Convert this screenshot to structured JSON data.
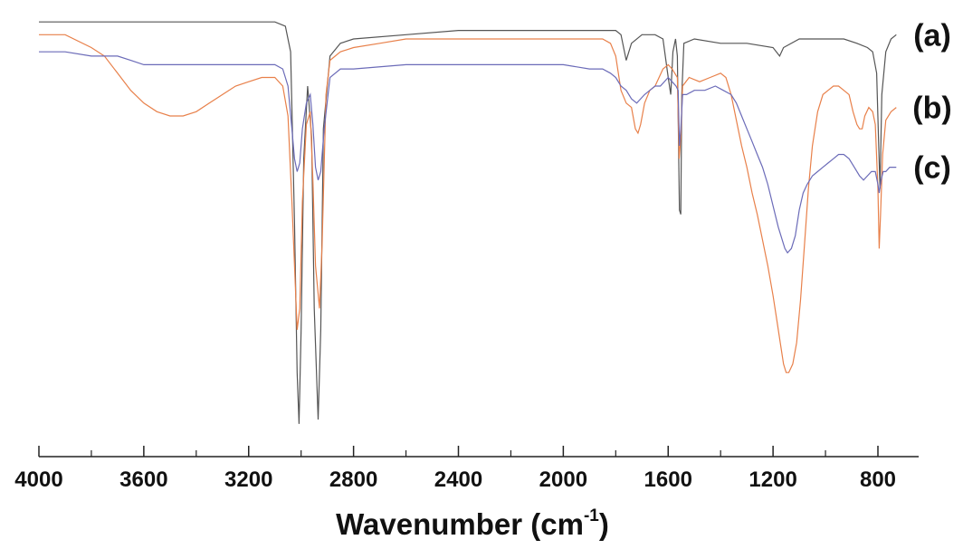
{
  "chart_data": {
    "type": "line",
    "title": "",
    "xlabel": "Wavenumber (cm",
    "xlabel_superscript": "-1",
    "xlabel_close": ")",
    "ylabel": "",
    "xlim": [
      4000,
      650
    ],
    "x_reversed": true,
    "grid": false,
    "major_ticks": [
      4000,
      3600,
      3200,
      2800,
      2400,
      2000,
      1600,
      1200,
      800
    ],
    "minor_ticks": [
      3800,
      3400,
      3000,
      2600,
      2200,
      1800,
      1400,
      1000
    ],
    "tick_labels": [
      "4000",
      "3600",
      "3200",
      "2800",
      "2400",
      "2000",
      "1600",
      "1200",
      "800"
    ],
    "transmittance_scale": "relative, y axis unlabeled, 0 = bottom of plot, 100 = top",
    "series": [
      {
        "name": "(a)",
        "color": "#555555",
        "points": [
          [
            4000,
            97
          ],
          [
            3600,
            97
          ],
          [
            3400,
            97
          ],
          [
            3200,
            97
          ],
          [
            3100,
            97
          ],
          [
            3060,
            96
          ],
          [
            3040,
            90
          ],
          [
            3025,
            50
          ],
          [
            3015,
            15
          ],
          [
            3008,
            3
          ],
          [
            3000,
            25
          ],
          [
            2990,
            65
          ],
          [
            2975,
            82
          ],
          [
            2960,
            70
          ],
          [
            2950,
            30
          ],
          [
            2935,
            4
          ],
          [
            2925,
            25
          ],
          [
            2915,
            72
          ],
          [
            2890,
            89
          ],
          [
            2850,
            92
          ],
          [
            2800,
            93
          ],
          [
            2600,
            94
          ],
          [
            2400,
            95
          ],
          [
            2200,
            95
          ],
          [
            2000,
            95
          ],
          [
            1900,
            95
          ],
          [
            1850,
            95
          ],
          [
            1800,
            95
          ],
          [
            1780,
            94
          ],
          [
            1760,
            88
          ],
          [
            1740,
            92
          ],
          [
            1700,
            94
          ],
          [
            1650,
            94
          ],
          [
            1620,
            93
          ],
          [
            1600,
            84
          ],
          [
            1590,
            80
          ],
          [
            1582,
            90
          ],
          [
            1572,
            93
          ],
          [
            1565,
            89
          ],
          [
            1557,
            53
          ],
          [
            1552,
            52
          ],
          [
            1548,
            80
          ],
          [
            1540,
            92
          ],
          [
            1500,
            93
          ],
          [
            1400,
            92
          ],
          [
            1300,
            92
          ],
          [
            1200,
            91
          ],
          [
            1175,
            89
          ],
          [
            1160,
            91
          ],
          [
            1100,
            93
          ],
          [
            1000,
            93
          ],
          [
            930,
            93
          ],
          [
            880,
            92
          ],
          [
            840,
            91
          ],
          [
            820,
            90
          ],
          [
            805,
            85
          ],
          [
            798,
            70
          ],
          [
            792,
            58
          ],
          [
            785,
            80
          ],
          [
            770,
            90
          ],
          [
            750,
            93
          ],
          [
            730,
            94
          ]
        ]
      },
      {
        "name": "(b)",
        "color": "#e8804a",
        "points": [
          [
            4000,
            94
          ],
          [
            3900,
            94
          ],
          [
            3800,
            91
          ],
          [
            3750,
            89
          ],
          [
            3700,
            85
          ],
          [
            3650,
            81
          ],
          [
            3600,
            78
          ],
          [
            3550,
            76
          ],
          [
            3500,
            75
          ],
          [
            3450,
            75
          ],
          [
            3400,
            76
          ],
          [
            3350,
            78
          ],
          [
            3300,
            80
          ],
          [
            3250,
            82
          ],
          [
            3200,
            83
          ],
          [
            3150,
            84
          ],
          [
            3100,
            84
          ],
          [
            3070,
            82
          ],
          [
            3050,
            75
          ],
          [
            3035,
            55
          ],
          [
            3025,
            40
          ],
          [
            3015,
            25
          ],
          [
            3005,
            30
          ],
          [
            2995,
            55
          ],
          [
            2980,
            73
          ],
          [
            2965,
            76
          ],
          [
            2955,
            60
          ],
          [
            2945,
            40
          ],
          [
            2930,
            30
          ],
          [
            2920,
            45
          ],
          [
            2905,
            80
          ],
          [
            2890,
            88
          ],
          [
            2850,
            90
          ],
          [
            2800,
            91
          ],
          [
            2700,
            92
          ],
          [
            2600,
            93
          ],
          [
            2400,
            93
          ],
          [
            2200,
            93
          ],
          [
            2000,
            93
          ],
          [
            1900,
            93
          ],
          [
            1850,
            93
          ],
          [
            1820,
            92
          ],
          [
            1800,
            89
          ],
          [
            1780,
            81
          ],
          [
            1760,
            78
          ],
          [
            1740,
            77
          ],
          [
            1725,
            72
          ],
          [
            1715,
            71
          ],
          [
            1705,
            73
          ],
          [
            1690,
            78
          ],
          [
            1670,
            81
          ],
          [
            1650,
            82
          ],
          [
            1620,
            86
          ],
          [
            1600,
            87
          ],
          [
            1585,
            86
          ],
          [
            1575,
            85
          ],
          [
            1565,
            84
          ],
          [
            1558,
            65
          ],
          [
            1552,
            70
          ],
          [
            1545,
            82
          ],
          [
            1520,
            84
          ],
          [
            1480,
            83
          ],
          [
            1440,
            84
          ],
          [
            1400,
            85
          ],
          [
            1380,
            84
          ],
          [
            1360,
            80
          ],
          [
            1340,
            74
          ],
          [
            1320,
            68
          ],
          [
            1300,
            63
          ],
          [
            1280,
            57
          ],
          [
            1260,
            52
          ],
          [
            1240,
            46
          ],
          [
            1220,
            40
          ],
          [
            1200,
            33
          ],
          [
            1185,
            27
          ],
          [
            1170,
            21
          ],
          [
            1160,
            17
          ],
          [
            1150,
            15
          ],
          [
            1140,
            15
          ],
          [
            1125,
            17
          ],
          [
            1110,
            22
          ],
          [
            1095,
            32
          ],
          [
            1080,
            45
          ],
          [
            1065,
            58
          ],
          [
            1050,
            68
          ],
          [
            1030,
            76
          ],
          [
            1010,
            80
          ],
          [
            990,
            81
          ],
          [
            970,
            82
          ],
          [
            950,
            82
          ],
          [
            930,
            81
          ],
          [
            910,
            80
          ],
          [
            895,
            76
          ],
          [
            880,
            73
          ],
          [
            870,
            72
          ],
          [
            860,
            72
          ],
          [
            850,
            75
          ],
          [
            835,
            77
          ],
          [
            820,
            76
          ],
          [
            810,
            73
          ],
          [
            800,
            58
          ],
          [
            795,
            44
          ],
          [
            790,
            52
          ],
          [
            782,
            66
          ],
          [
            770,
            74
          ],
          [
            750,
            76
          ],
          [
            730,
            77
          ]
        ]
      },
      {
        "name": "(c)",
        "color": "#6b6bb8",
        "points": [
          [
            4000,
            90
          ],
          [
            3900,
            90
          ],
          [
            3800,
            89
          ],
          [
            3700,
            89
          ],
          [
            3650,
            88
          ],
          [
            3600,
            87
          ],
          [
            3500,
            87
          ],
          [
            3400,
            87
          ],
          [
            3300,
            87
          ],
          [
            3200,
            87
          ],
          [
            3100,
            87
          ],
          [
            3070,
            86
          ],
          [
            3050,
            82
          ],
          [
            3035,
            72
          ],
          [
            3025,
            65
          ],
          [
            3015,
            62
          ],
          [
            3005,
            64
          ],
          [
            2995,
            72
          ],
          [
            2980,
            78
          ],
          [
            2965,
            80
          ],
          [
            2955,
            73
          ],
          [
            2945,
            63
          ],
          [
            2935,
            60
          ],
          [
            2925,
            62
          ],
          [
            2912,
            72
          ],
          [
            2890,
            84
          ],
          [
            2850,
            86
          ],
          [
            2800,
            86
          ],
          [
            2600,
            87
          ],
          [
            2400,
            87
          ],
          [
            2200,
            87
          ],
          [
            2000,
            87
          ],
          [
            1900,
            86
          ],
          [
            1850,
            86
          ],
          [
            1820,
            85
          ],
          [
            1800,
            84
          ],
          [
            1780,
            82
          ],
          [
            1760,
            81
          ],
          [
            1740,
            79
          ],
          [
            1720,
            78
          ],
          [
            1705,
            79
          ],
          [
            1690,
            80
          ],
          [
            1670,
            81
          ],
          [
            1650,
            82
          ],
          [
            1630,
            82
          ],
          [
            1600,
            84
          ],
          [
            1585,
            83
          ],
          [
            1570,
            82
          ],
          [
            1562,
            81
          ],
          [
            1557,
            68
          ],
          [
            1552,
            72
          ],
          [
            1545,
            80
          ],
          [
            1530,
            80
          ],
          [
            1500,
            81
          ],
          [
            1460,
            81
          ],
          [
            1420,
            82
          ],
          [
            1390,
            81
          ],
          [
            1360,
            80
          ],
          [
            1340,
            78
          ],
          [
            1320,
            75
          ],
          [
            1300,
            72
          ],
          [
            1280,
            69
          ],
          [
            1260,
            66
          ],
          [
            1240,
            63
          ],
          [
            1220,
            59
          ],
          [
            1200,
            54
          ],
          [
            1180,
            49
          ],
          [
            1165,
            46
          ],
          [
            1155,
            44
          ],
          [
            1145,
            43
          ],
          [
            1130,
            44
          ],
          [
            1115,
            47
          ],
          [
            1100,
            53
          ],
          [
            1085,
            57
          ],
          [
            1070,
            59
          ],
          [
            1050,
            61
          ],
          [
            1030,
            62
          ],
          [
            1010,
            63
          ],
          [
            990,
            64
          ],
          [
            970,
            65
          ],
          [
            950,
            66
          ],
          [
            930,
            66
          ],
          [
            910,
            65
          ],
          [
            890,
            63
          ],
          [
            870,
            61
          ],
          [
            855,
            60
          ],
          [
            840,
            61
          ],
          [
            825,
            62
          ],
          [
            810,
            62
          ],
          [
            800,
            59
          ],
          [
            795,
            57
          ],
          [
            788,
            60
          ],
          [
            780,
            62
          ],
          [
            770,
            62
          ],
          [
            755,
            63
          ],
          [
            740,
            63
          ],
          [
            730,
            63
          ]
        ]
      }
    ]
  }
}
